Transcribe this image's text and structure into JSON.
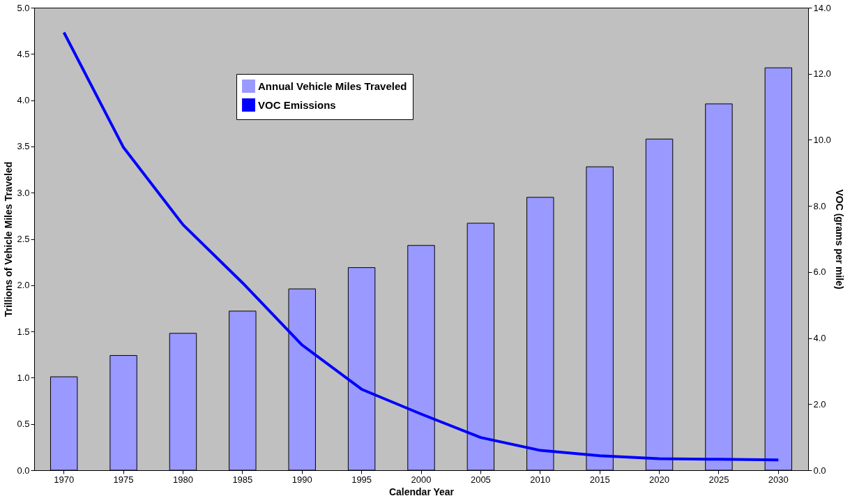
{
  "chart_data": {
    "type": "bar",
    "categories": [
      "1970",
      "1975",
      "1980",
      "1985",
      "1990",
      "1995",
      "2000",
      "2005",
      "2010",
      "2015",
      "2020",
      "2025",
      "2030"
    ],
    "series": [
      {
        "name": "Annual Vehicle Miles Traveled",
        "color": "#9999ff",
        "values": [
          1.01,
          1.24,
          1.48,
          1.72,
          1.96,
          2.19,
          2.43,
          2.67,
          2.95,
          3.28,
          3.58,
          3.96,
          4.35
        ]
      },
      {
        "name": "VOC Emissions",
        "type": "line",
        "axis": "y2",
        "color": "#0000ff",
        "values": [
          13.25,
          9.77,
          7.43,
          5.67,
          3.79,
          2.45,
          1.7,
          0.99,
          0.6,
          0.44,
          0.35,
          0.33,
          0.31
        ]
      }
    ],
    "xlabel": "Calendar Year",
    "ylabel": "Trillions of Vehicle Miles Traveled",
    "y2label": "VOC (grams per mile)",
    "ylim": [
      0,
      5
    ],
    "yticks": [
      {
        "value": 0,
        "label": "0.0"
      },
      {
        "value": 0.5,
        "label": "0.5"
      },
      {
        "value": 1,
        "label": "1.0"
      },
      {
        "value": 1.5,
        "label": "1.5"
      },
      {
        "value": 2,
        "label": "2.0"
      },
      {
        "value": 2.5,
        "label": "2.5"
      },
      {
        "value": 3,
        "label": "3.0"
      },
      {
        "value": 3.5,
        "label": "3.5"
      },
      {
        "value": 4,
        "label": "4.0"
      },
      {
        "value": 4.5,
        "label": "4.5"
      },
      {
        "value": 5,
        "label": "5.0"
      }
    ],
    "y2lim": [
      0,
      14
    ],
    "y2ticks": [
      {
        "value": 0,
        "label": "0.0"
      },
      {
        "value": 2,
        "label": "2.0"
      },
      {
        "value": 4,
        "label": "4.0"
      },
      {
        "value": 6,
        "label": "6.0"
      },
      {
        "value": 8,
        "label": "8.0"
      },
      {
        "value": 10,
        "label": "10.0"
      },
      {
        "value": 12,
        "label": "12.0"
      },
      {
        "value": 14,
        "label": "14.0"
      }
    ],
    "grid": false,
    "legend": "top",
    "marker": "none",
    "line_style": "solid"
  }
}
